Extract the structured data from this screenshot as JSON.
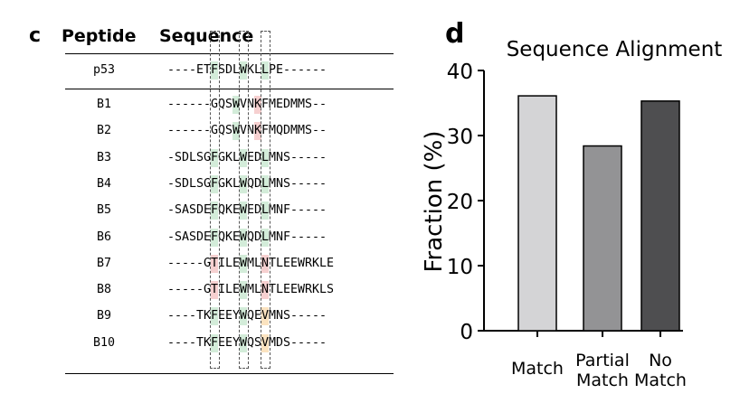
{
  "panel_c": {
    "letter": "c",
    "headers": {
      "peptide": "Peptide",
      "sequence": "Sequence"
    },
    "rows": [
      {
        "name": "p53",
        "seq": "----ETFSDLWKLLPE------",
        "hl": [
          [
            6,
            "g"
          ],
          [
            10,
            "g"
          ],
          [
            13,
            "g"
          ]
        ]
      },
      {
        "name": "B1",
        "seq": "------GQSWVNKFMEDMMS--",
        "hl": [
          [
            9,
            "g"
          ],
          [
            12,
            "r"
          ]
        ]
      },
      {
        "name": "B2",
        "seq": "------GQSWVNKFMQDMMS--",
        "hl": [
          [
            9,
            "g"
          ],
          [
            12,
            "r"
          ]
        ]
      },
      {
        "name": "B3",
        "seq": "-SDLSGFGKLWEDLMNS-----",
        "hl": [
          [
            6,
            "g"
          ],
          [
            10,
            "g"
          ],
          [
            13,
            "g"
          ]
        ]
      },
      {
        "name": "B4",
        "seq": "-SDLSGFGKLWQDLMNS-----",
        "hl": [
          [
            6,
            "g"
          ],
          [
            10,
            "g"
          ],
          [
            13,
            "g"
          ]
        ]
      },
      {
        "name": "B5",
        "seq": "-SASDEFQKEWEDLMNF-----",
        "hl": [
          [
            6,
            "g"
          ],
          [
            10,
            "g"
          ],
          [
            13,
            "g"
          ]
        ]
      },
      {
        "name": "B6",
        "seq": "-SASDEFQKEWQDLMNF-----",
        "hl": [
          [
            6,
            "g"
          ],
          [
            10,
            "g"
          ],
          [
            13,
            "g"
          ]
        ]
      },
      {
        "name": "B7",
        "seq": "-----GTILEWMLNTLEEWRKLE",
        "hl": [
          [
            6,
            "r"
          ],
          [
            10,
            "g"
          ],
          [
            13,
            "r"
          ]
        ]
      },
      {
        "name": "B8",
        "seq": "-----GTILEWMLNTLEEWRKLS",
        "hl": [
          [
            6,
            "r"
          ],
          [
            10,
            "g"
          ],
          [
            13,
            "r"
          ]
        ]
      },
      {
        "name": "B9",
        "seq": "----TKFEEYWQEVMNS-----",
        "hl": [
          [
            6,
            "g"
          ],
          [
            10,
            "g"
          ],
          [
            13,
            "o"
          ]
        ]
      },
      {
        "name": "B10",
        "seq": "----TKFEEYWQSVMDS-----",
        "hl": [
          [
            6,
            "g"
          ],
          [
            10,
            "g"
          ],
          [
            13,
            "o"
          ]
        ]
      }
    ]
  },
  "chart_data": {
    "type": "bar",
    "panel_letter": "d",
    "title": "Sequence Alignment",
    "ylabel": "Fraction (%)",
    "xlabel": "",
    "categories": [
      [
        "Match"
      ],
      [
        "Partial",
        "Match"
      ],
      [
        "No",
        "Match"
      ]
    ],
    "values": [
      36.1,
      28.4,
      35.3
    ],
    "ylim": [
      0,
      40
    ],
    "yticks": [
      0,
      10,
      20,
      30,
      40
    ],
    "bar_colors": [
      "#d4d4d6",
      "#939395",
      "#4e4e50"
    ],
    "grid": false
  },
  "colors": {
    "match": "#d3ecd9",
    "mismatch": "#f6d0d0",
    "partial": "#fbe3c0"
  }
}
